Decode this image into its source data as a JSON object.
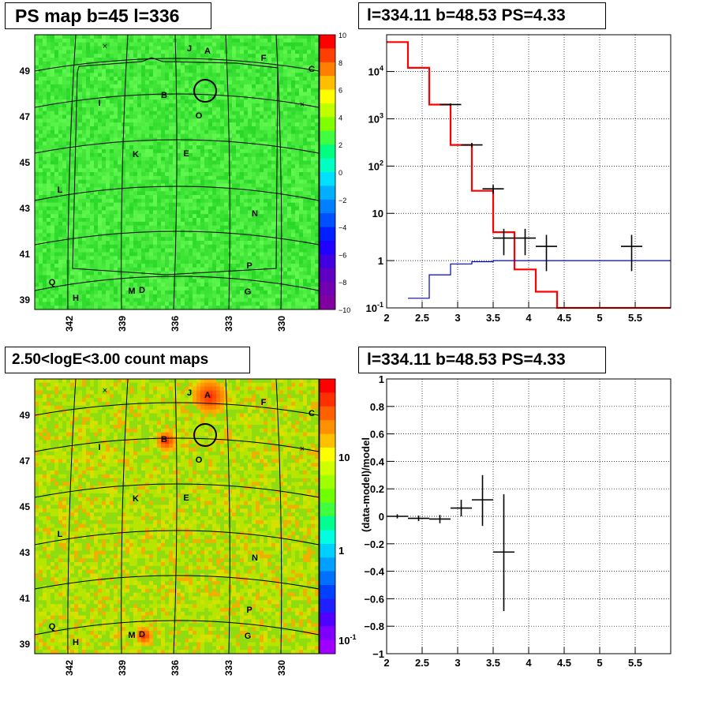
{
  "panels": {
    "tl": {
      "title": "PS map b=45 l=336"
    },
    "bl": {
      "title": "2.50<logE<3.00 count maps"
    },
    "tr": {
      "title": "l=334.11 b=48.53 PS=4.33"
    },
    "br": {
      "title": "l=334.11 b=48.53 PS=4.33"
    }
  },
  "sky": {
    "lon_ticks": [
      "342",
      "339",
      "336",
      "333",
      "330"
    ],
    "lat_ticks": [
      "49",
      "47",
      "45",
      "43",
      "41",
      "39"
    ],
    "sources": [
      {
        "label": "A"
      },
      {
        "label": "B"
      },
      {
        "label": "C"
      },
      {
        "label": "D"
      },
      {
        "label": "E"
      },
      {
        "label": "F"
      },
      {
        "label": "G"
      },
      {
        "label": "H"
      },
      {
        "label": "I"
      },
      {
        "label": "J"
      },
      {
        "label": "K"
      },
      {
        "label": "L"
      },
      {
        "label": "M"
      },
      {
        "label": "N"
      },
      {
        "label": "O"
      },
      {
        "label": "P"
      },
      {
        "label": "Q"
      }
    ],
    "markers": [
      "×",
      "×"
    ],
    "ps_colorbar": {
      "ticks": [
        "10",
        "8",
        "6",
        "4",
        "2",
        "0",
        "−2",
        "−4",
        "−6",
        "−8",
        "−10"
      ],
      "range": [
        -10,
        10
      ]
    },
    "count_colorbar": {
      "ticks": [
        "10",
        "1",
        "10-1"
      ]
    }
  },
  "chart_data": [
    {
      "type": "line",
      "panel": "spectrum",
      "title": "l=334.11 b=48.53 PS=4.33",
      "yscale": "log",
      "xlim": [
        2,
        6
      ],
      "ylim": [
        0.1,
        60000
      ],
      "grid": true,
      "x_ticks": [
        "2",
        "2.5",
        "3",
        "3.5",
        "4",
        "4.5",
        "5",
        "5.5"
      ],
      "y_ticks": [
        "10-1",
        "1",
        "10",
        "102",
        "103",
        "104"
      ],
      "series": [
        {
          "color": "#ff0000",
          "style": "step",
          "edges": [
            2.0,
            2.3,
            2.6,
            2.9,
            3.2,
            3.5,
            3.8,
            4.1,
            4.4,
            6.0
          ],
          "values": [
            42000,
            12000,
            2000,
            280,
            30,
            4,
            0.65,
            0.22,
            0.1
          ]
        },
        {
          "color": "#0000cc",
          "style": "step",
          "edges": [
            2.3,
            2.6,
            2.9,
            3.2,
            3.5,
            3.8,
            6.0
          ],
          "values": [
            0.16,
            0.5,
            0.85,
            0.95,
            1.0,
            1.0
          ]
        },
        {
          "color": "#000000",
          "style": "errorbar",
          "points": [
            {
              "x": 2.9,
              "xerr": 0.15,
              "y": 2000,
              "ylo": 1880,
              "yhi": 2120
            },
            {
              "x": 3.2,
              "xerr": 0.15,
              "y": 280,
              "ylo": 250,
              "yhi": 310
            },
            {
              "x": 3.5,
              "xerr": 0.15,
              "y": 33,
              "ylo": 26,
              "yhi": 40
            },
            {
              "x": 3.65,
              "xerr": 0.15,
              "y": 3,
              "ylo": 1.3,
              "yhi": 4.7
            },
            {
              "x": 3.95,
              "xerr": 0.15,
              "y": 3,
              "ylo": 1.3,
              "yhi": 4.7
            },
            {
              "x": 4.25,
              "xerr": 0.15,
              "y": 2,
              "ylo": 0.6,
              "yhi": 3.5
            },
            {
              "x": 5.45,
              "xerr": 0.15,
              "y": 2,
              "ylo": 0.6,
              "yhi": 3.5
            }
          ]
        }
      ]
    },
    {
      "type": "scatter",
      "panel": "residual",
      "title": "l=334.11 b=48.53 PS=4.33",
      "ylabel": "(data-model)/model",
      "xlim": [
        2,
        6
      ],
      "ylim": [
        -1,
        1
      ],
      "grid": true,
      "x_ticks": [
        "2",
        "2.5",
        "3",
        "3.5",
        "4",
        "4.5",
        "5",
        "5.5"
      ],
      "y_ticks": [
        "−1",
        "−0.8",
        "−0.6",
        "−0.4",
        "−0.2",
        "0",
        "0.2",
        "0.4",
        "0.6",
        "0.8",
        "1"
      ],
      "points": [
        {
          "x": 2.15,
          "xerr": 0.15,
          "y": 0.0,
          "ylo": -0.015,
          "yhi": 0.015
        },
        {
          "x": 2.45,
          "xerr": 0.15,
          "y": -0.015,
          "ylo": -0.035,
          "yhi": 0.005
        },
        {
          "x": 2.75,
          "xerr": 0.15,
          "y": -0.02,
          "ylo": -0.05,
          "yhi": 0.01
        },
        {
          "x": 3.05,
          "xerr": 0.15,
          "y": 0.06,
          "ylo": 0.0,
          "yhi": 0.12
        },
        {
          "x": 3.35,
          "xerr": 0.15,
          "y": 0.12,
          "ylo": -0.07,
          "yhi": 0.3
        },
        {
          "x": 3.65,
          "xerr": 0.15,
          "y": -0.26,
          "ylo": -0.69,
          "yhi": 0.16
        }
      ]
    }
  ]
}
